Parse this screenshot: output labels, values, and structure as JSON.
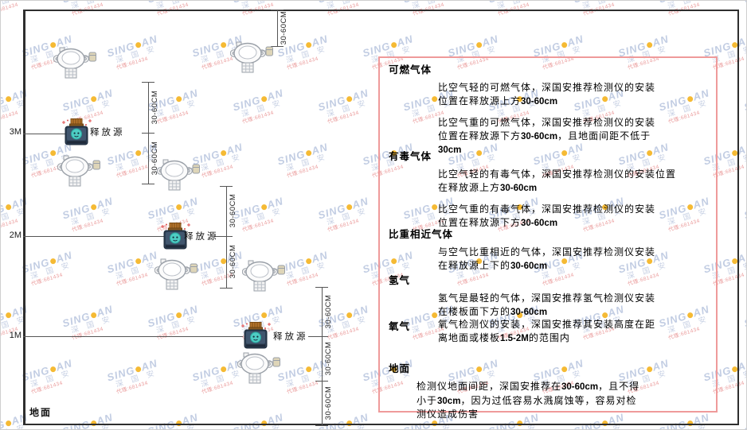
{
  "diagram": {
    "axis_labels": [
      "3M",
      "2M",
      "1M"
    ],
    "ground_label": "地面",
    "release_source_label": "释放源",
    "dimension_label": "30-60CM"
  },
  "panel": {
    "sections": [
      {
        "title": "可燃气体",
        "paragraphs": [
          [
            "比空气轻的可燃气体，深国安推荐检测仪的安装",
            "位置在释放源上方30-60cm"
          ],
          [
            "比空气重的可燃气体，深国安推荐检测仪的安装",
            "位置在释放源下方30-60cm，且地面间距不低于",
            "30cm"
          ]
        ]
      },
      {
        "title": "有毒气体",
        "paragraphs": [
          [
            "比空气轻的有毒气体，深国安推荐检测仪的安装位置",
            "在释放源上方30-60cm"
          ],
          [
            "比空气重的有毒气体，深国安推荐检测仪的安装",
            "位置在释放源下方30-60cm"
          ]
        ]
      },
      {
        "title": "比重相近气体",
        "paragraphs": [
          [
            "与空气比重相近的气体，深国安推荐检测仪安装",
            "在释放源上下的30-60cm"
          ]
        ]
      },
      {
        "title": "氢气",
        "paragraphs": [
          [
            "氢气是最轻的气体，深国安推荐氢气检测仪安装",
            "在楼板面下方的30-60cm"
          ]
        ]
      },
      {
        "title": "氧气",
        "paragraphs": [
          [
            "氧气检测仪的安装，深国安推荐其安装高度在距",
            "离地面或楼板1.5-2M的范围内"
          ]
        ]
      },
      {
        "title": "地面",
        "paragraphs": [
          [
            "检测仪地面间距，深国安推荐在30-60cm，且不得",
            "小于30cm，因为过低容易水溅腐蚀等，容易对检",
            "测仪造成伤害"
          ]
        ]
      }
    ]
  },
  "watermark": {
    "brand_left": "SING",
    "brand_right": "AN",
    "brand_cn": "深 国 安",
    "agent_line": "代理:681434"
  },
  "colors": {
    "panel_border": "#ef9a9a",
    "room_border": "#2e2e2e",
    "dimension_line": "#555555",
    "watermark_blue": "#bcc8e0",
    "watermark_red": "#e89090",
    "watermark_dot": "#f5b31f",
    "source_body": "#2d3e52",
    "source_cap": "#b8762c",
    "source_face": "#4ecdc4",
    "detector_stroke": "#9aa0a8"
  }
}
